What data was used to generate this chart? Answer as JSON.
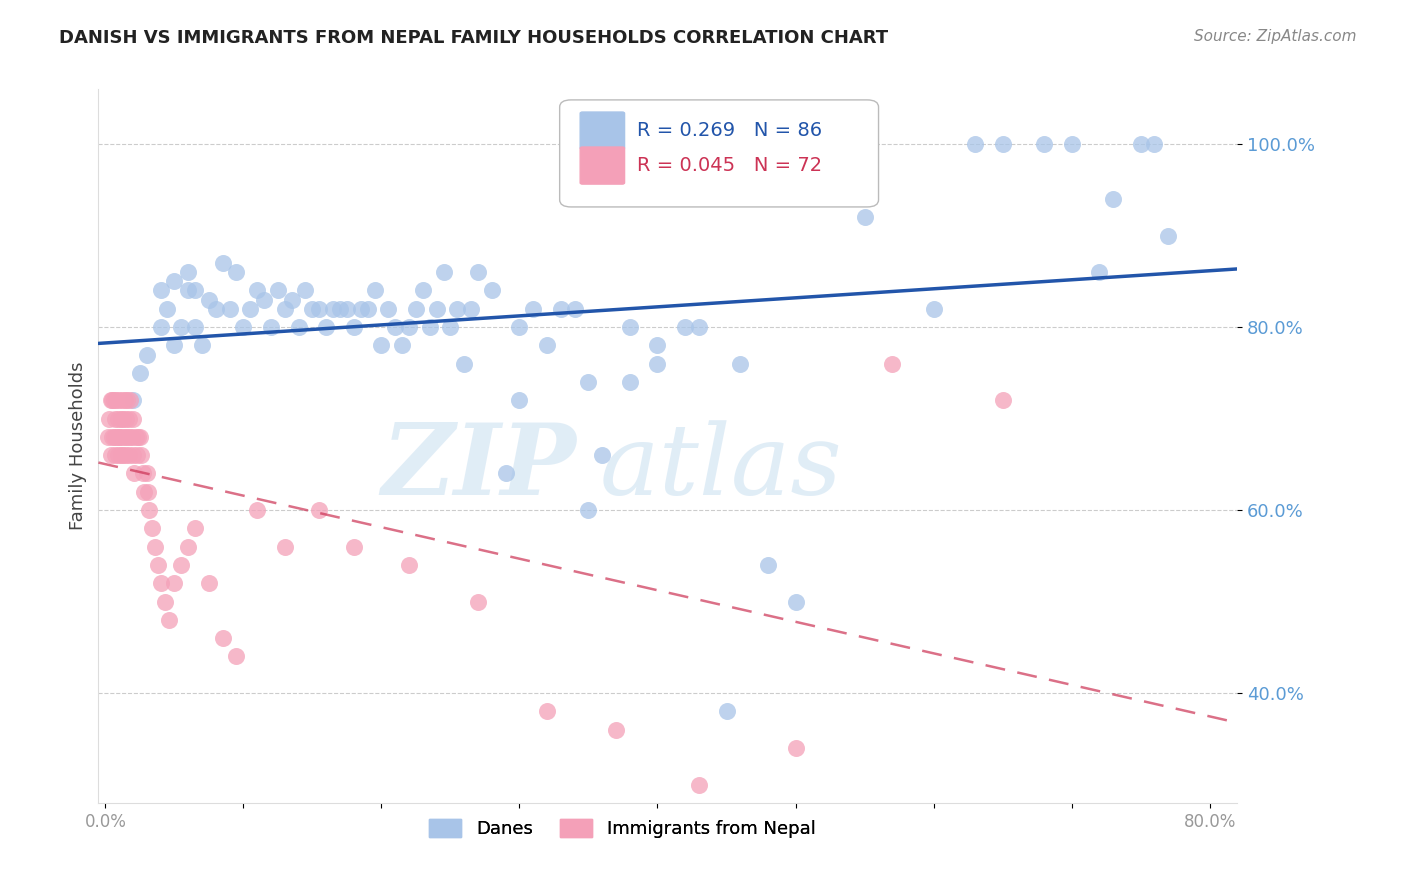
{
  "title": "DANISH VS IMMIGRANTS FROM NEPAL FAMILY HOUSEHOLDS CORRELATION CHART",
  "source": "Source: ZipAtlas.com",
  "ylabel": "Family Households",
  "xlim": [
    -0.005,
    0.82
  ],
  "ylim": [
    0.28,
    1.06
  ],
  "yticks": [
    0.4,
    0.6,
    0.8,
    1.0
  ],
  "ytick_labels": [
    "40.0%",
    "60.0%",
    "80.0%",
    "100.0%"
  ],
  "xticks": [
    0.0,
    0.1,
    0.2,
    0.3,
    0.4,
    0.5,
    0.6,
    0.7,
    0.8
  ],
  "xtick_labels": [
    "0.0%",
    "",
    "",
    "",
    "",
    "",
    "",
    "",
    "80.0%"
  ],
  "legend_danes": "Danes",
  "legend_nepal": "Immigrants from Nepal",
  "r_danes": "R = 0.269",
  "n_danes": "N = 86",
  "r_nepal": "R = 0.045",
  "n_nepal": "N = 72",
  "danes_color": "#a8c4e8",
  "danes_line_color": "#2255aa",
  "nepal_color": "#f4a0b8",
  "nepal_line_color": "#cc3355",
  "background_color": "#ffffff",
  "watermark_zip": "ZIP",
  "watermark_atlas": "atlas",
  "danes_x": [
    0.02,
    0.025,
    0.03,
    0.04,
    0.04,
    0.045,
    0.05,
    0.05,
    0.055,
    0.06,
    0.06,
    0.065,
    0.065,
    0.07,
    0.075,
    0.08,
    0.085,
    0.09,
    0.095,
    0.1,
    0.105,
    0.11,
    0.115,
    0.12,
    0.125,
    0.13,
    0.135,
    0.14,
    0.145,
    0.15,
    0.155,
    0.16,
    0.165,
    0.17,
    0.175,
    0.18,
    0.185,
    0.19,
    0.195,
    0.2,
    0.205,
    0.21,
    0.215,
    0.22,
    0.225,
    0.23,
    0.235,
    0.24,
    0.245,
    0.25,
    0.255,
    0.26,
    0.265,
    0.27,
    0.28,
    0.29,
    0.3,
    0.31,
    0.32,
    0.33,
    0.34,
    0.35,
    0.36,
    0.38,
    0.4,
    0.42,
    0.45,
    0.48,
    0.5,
    0.55,
    0.6,
    0.63,
    0.65,
    0.68,
    0.7,
    0.72,
    0.73,
    0.75,
    0.76,
    0.77,
    0.43,
    0.46,
    0.3,
    0.35,
    0.38,
    0.4
  ],
  "danes_y": [
    0.72,
    0.75,
    0.77,
    0.8,
    0.84,
    0.82,
    0.78,
    0.85,
    0.8,
    0.84,
    0.86,
    0.8,
    0.84,
    0.78,
    0.83,
    0.82,
    0.87,
    0.82,
    0.86,
    0.8,
    0.82,
    0.84,
    0.83,
    0.8,
    0.84,
    0.82,
    0.83,
    0.8,
    0.84,
    0.82,
    0.82,
    0.8,
    0.82,
    0.82,
    0.82,
    0.8,
    0.82,
    0.82,
    0.84,
    0.78,
    0.82,
    0.8,
    0.78,
    0.8,
    0.82,
    0.84,
    0.8,
    0.82,
    0.86,
    0.8,
    0.82,
    0.76,
    0.82,
    0.86,
    0.84,
    0.64,
    0.8,
    0.82,
    0.78,
    0.82,
    0.82,
    0.6,
    0.66,
    0.8,
    0.78,
    0.8,
    0.38,
    0.54,
    0.5,
    0.92,
    0.82,
    1.0,
    1.0,
    1.0,
    1.0,
    0.86,
    0.94,
    1.0,
    1.0,
    0.9,
    0.8,
    0.76,
    0.72,
    0.74,
    0.74,
    0.76
  ],
  "nepal_x": [
    0.002,
    0.003,
    0.004,
    0.004,
    0.005,
    0.005,
    0.006,
    0.006,
    0.007,
    0.007,
    0.008,
    0.008,
    0.009,
    0.009,
    0.01,
    0.01,
    0.01,
    0.011,
    0.011,
    0.012,
    0.012,
    0.013,
    0.013,
    0.014,
    0.014,
    0.015,
    0.015,
    0.016,
    0.016,
    0.017,
    0.017,
    0.018,
    0.018,
    0.019,
    0.02,
    0.02,
    0.021,
    0.022,
    0.023,
    0.024,
    0.025,
    0.026,
    0.027,
    0.028,
    0.03,
    0.031,
    0.032,
    0.034,
    0.036,
    0.038,
    0.04,
    0.043,
    0.046,
    0.05,
    0.055,
    0.06,
    0.065,
    0.075,
    0.085,
    0.095,
    0.11,
    0.13,
    0.155,
    0.18,
    0.22,
    0.27,
    0.32,
    0.37,
    0.43,
    0.5,
    0.57,
    0.65
  ],
  "nepal_y": [
    0.68,
    0.7,
    0.66,
    0.72,
    0.68,
    0.72,
    0.68,
    0.72,
    0.66,
    0.7,
    0.68,
    0.72,
    0.66,
    0.7,
    0.68,
    0.72,
    0.68,
    0.7,
    0.66,
    0.68,
    0.72,
    0.66,
    0.7,
    0.68,
    0.72,
    0.66,
    0.7,
    0.68,
    0.72,
    0.66,
    0.7,
    0.68,
    0.72,
    0.68,
    0.66,
    0.7,
    0.64,
    0.68,
    0.66,
    0.68,
    0.68,
    0.66,
    0.64,
    0.62,
    0.64,
    0.62,
    0.6,
    0.58,
    0.56,
    0.54,
    0.52,
    0.5,
    0.48,
    0.52,
    0.54,
    0.56,
    0.58,
    0.52,
    0.46,
    0.44,
    0.6,
    0.56,
    0.6,
    0.56,
    0.54,
    0.5,
    0.38,
    0.36,
    0.3,
    0.34,
    0.76,
    0.72
  ]
}
